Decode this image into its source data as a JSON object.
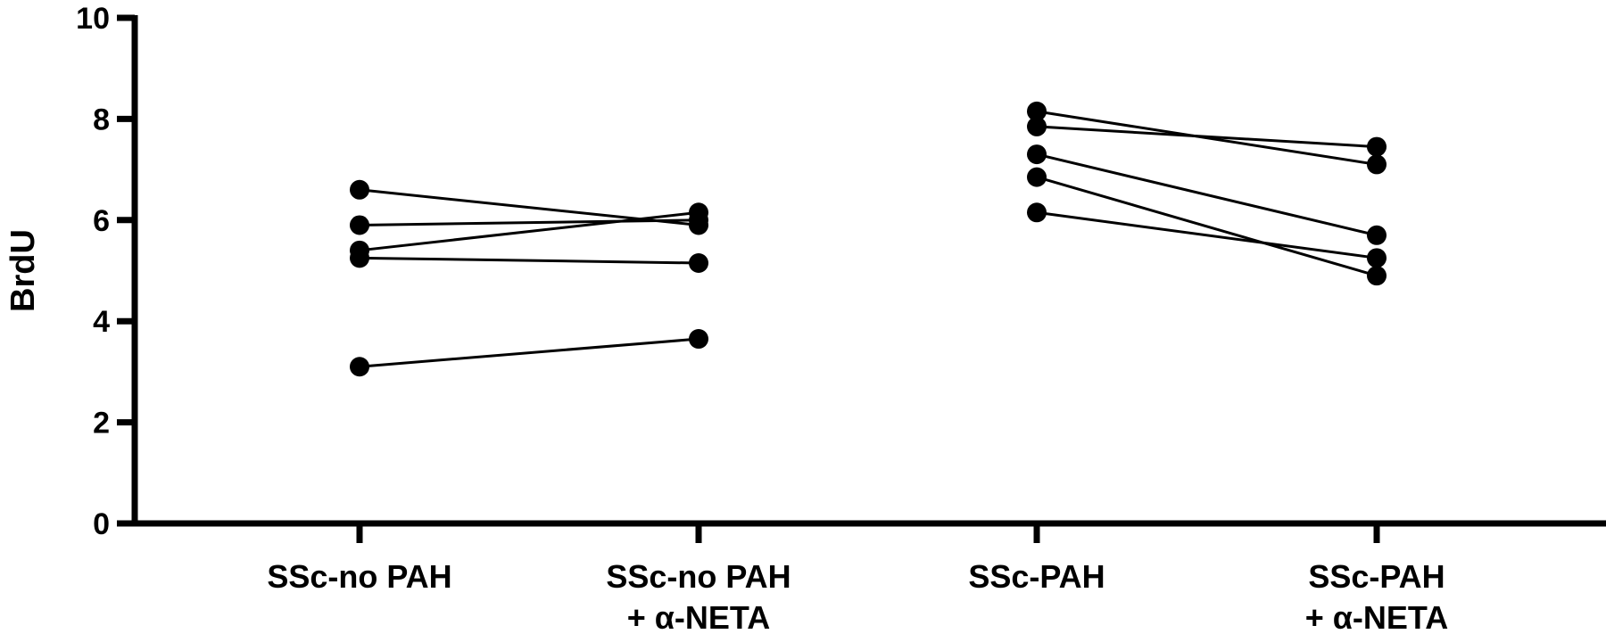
{
  "chart_data": {
    "type": "scatter",
    "subtype": "paired before-after",
    "title": "",
    "xlabel": "",
    "ylabel": "BrdU",
    "ylim": [
      0,
      10
    ],
    "yticks": [
      0,
      2,
      4,
      6,
      8,
      10
    ],
    "grid": false,
    "legend": "none",
    "colors": {
      "marks": "#000000",
      "axis": "#000000"
    },
    "categories": [
      {
        "lines": [
          "SSc-no PAH"
        ]
      },
      {
        "lines": [
          "SSc-no PAH",
          "+ α-NETA"
        ]
      },
      {
        "lines": [
          "SSc-PAH"
        ]
      },
      {
        "lines": [
          "SSc-PAH",
          "+ α-NETA"
        ]
      }
    ],
    "pairs": [
      {
        "from": 0,
        "to": 1,
        "y_from": 6.6,
        "y_to": 5.9
      },
      {
        "from": 0,
        "to": 1,
        "y_from": 5.9,
        "y_to": 6.0
      },
      {
        "from": 0,
        "to": 1,
        "y_from": 5.4,
        "y_to": 6.15
      },
      {
        "from": 0,
        "to": 1,
        "y_from": 5.25,
        "y_to": 5.15
      },
      {
        "from": 0,
        "to": 1,
        "y_from": 3.1,
        "y_to": 3.65
      },
      {
        "from": 2,
        "to": 3,
        "y_from": 8.15,
        "y_to": 7.1
      },
      {
        "from": 2,
        "to": 3,
        "y_from": 7.85,
        "y_to": 7.45
      },
      {
        "from": 2,
        "to": 3,
        "y_from": 7.3,
        "y_to": 5.7
      },
      {
        "from": 2,
        "to": 3,
        "y_from": 6.85,
        "y_to": 4.9
      },
      {
        "from": 2,
        "to": 3,
        "y_from": 6.15,
        "y_to": 5.25
      }
    ]
  }
}
